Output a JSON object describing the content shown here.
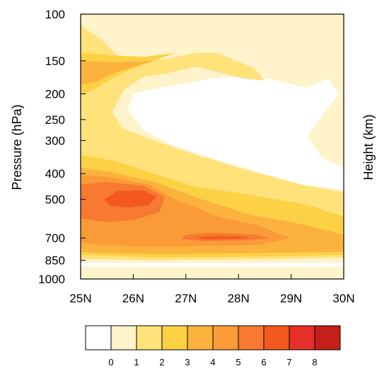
{
  "chart_data": {
    "type": "heatmap",
    "subtype": "filled-contour",
    "ylabel": "Pressure (hPa)",
    "ylabel_right": "Height (km)",
    "x": {
      "range": [
        25,
        30
      ],
      "ticks": [
        25,
        26,
        27,
        28,
        29,
        30
      ],
      "tick_labels": [
        "25N",
        "26N",
        "27N",
        "28N",
        "29N",
        "30N"
      ]
    },
    "y": {
      "scale": "log",
      "inverted": true,
      "range": [
        1000,
        100
      ],
      "ticks": [
        100,
        150,
        200,
        250,
        300,
        400,
        500,
        700,
        850,
        1000
      ],
      "tick_labels": [
        "100",
        "150",
        "200",
        "250",
        "300",
        "400",
        "500",
        "700",
        "850",
        "1000"
      ]
    },
    "colorbar": {
      "labels": [
        "0",
        "1",
        "2",
        "3",
        "4",
        "5",
        "6",
        "7",
        "8"
      ],
      "colors": [
        "#ffffff",
        "#fff3cc",
        "#ffe27a",
        "#fdd145",
        "#fcb33e",
        "#fb9b37",
        "#f87931",
        "#f5581f",
        "#e5302a",
        "#c41f1a"
      ]
    },
    "contours": [
      {
        "level": 0,
        "color": "#fff3cc",
        "points": [
          [
            25,
            1000
          ],
          [
            30,
            1000
          ],
          [
            30,
            100
          ],
          [
            25,
            100
          ]
        ]
      },
      {
        "level": 0.5,
        "color": "#ffffff",
        "points": [
          [
            25,
            1000
          ],
          [
            30,
            1000
          ],
          [
            30,
            870
          ],
          [
            25,
            870
          ]
        ]
      },
      {
        "level": 1,
        "color": "#ffffff",
        "points": [
          [
            26.5,
            190
          ],
          [
            27.5,
            175
          ],
          [
            28.3,
            170
          ],
          [
            29.3,
            190
          ],
          [
            29.7,
            175
          ],
          [
            29.9,
            200
          ],
          [
            29.6,
            240
          ],
          [
            29.3,
            290
          ],
          [
            29.6,
            350
          ],
          [
            30,
            380
          ],
          [
            30,
            460
          ],
          [
            29.2,
            440
          ],
          [
            28.1,
            380
          ],
          [
            27.3,
            340
          ],
          [
            26.7,
            310
          ],
          [
            26.2,
            275
          ],
          [
            25.9,
            230
          ],
          [
            26.0,
            200
          ]
        ]
      },
      {
        "level": 1.1,
        "color": "#fff3cc",
        "points": [
          [
            25,
            1000
          ],
          [
            30,
            1000
          ],
          [
            30,
            900
          ],
          [
            25,
            900
          ]
        ]
      },
      {
        "level": 1.2,
        "color": "#ffe27a",
        "points": [
          [
            25,
            110
          ],
          [
            25.4,
            125
          ],
          [
            25.8,
            150
          ],
          [
            26.6,
            148
          ],
          [
            27.2,
            140
          ],
          [
            27.6,
            140
          ],
          [
            28.3,
            160
          ],
          [
            28.5,
            178
          ],
          [
            28.1,
            175
          ],
          [
            27.2,
            158
          ],
          [
            26.6,
            168
          ],
          [
            26.2,
            172
          ],
          [
            25.8,
            195
          ],
          [
            25.6,
            235
          ],
          [
            25.8,
            270
          ],
          [
            26.4,
            300
          ],
          [
            27.2,
            340
          ],
          [
            28.2,
            390
          ],
          [
            29.2,
            440
          ],
          [
            30,
            470
          ],
          [
            30,
            830
          ],
          [
            28.8,
            840
          ],
          [
            27.5,
            845
          ],
          [
            26.3,
            850
          ],
          [
            25,
            840
          ]
        ]
      },
      {
        "level": 2,
        "color": "#fdd145",
        "points": [
          [
            25,
            140
          ],
          [
            25.6,
            143
          ],
          [
            26.2,
            145
          ],
          [
            26.8,
            140
          ],
          [
            26.0,
            160
          ],
          [
            25.6,
            175
          ],
          [
            25.2,
            195
          ],
          [
            25,
            200
          ]
        ]
      },
      {
        "level": 2.1,
        "color": "#fdd145",
        "points": [
          [
            25,
            340
          ],
          [
            25.7,
            360
          ],
          [
            26.4,
            400
          ],
          [
            27.2,
            450
          ],
          [
            28.2,
            480
          ],
          [
            29.2,
            520
          ],
          [
            30,
            580
          ],
          [
            30,
            810
          ],
          [
            29.0,
            820
          ],
          [
            27.8,
            825
          ],
          [
            26.5,
            830
          ],
          [
            25,
            810
          ]
        ]
      },
      {
        "level": 3,
        "color": "#fcb33e",
        "points": [
          [
            25,
            150
          ],
          [
            25.7,
            152
          ],
          [
            26.4,
            150
          ],
          [
            25.7,
            165
          ],
          [
            25.3,
            180
          ],
          [
            25,
            185
          ]
        ]
      },
      {
        "level": 3.1,
        "color": "#fcb33e",
        "points": [
          [
            25,
            380
          ],
          [
            25.6,
            395
          ],
          [
            26.4,
            430
          ],
          [
            27.3,
            500
          ],
          [
            28.2,
            570
          ],
          [
            29.2,
            620
          ],
          [
            30,
            680
          ],
          [
            30,
            790
          ],
          [
            29.2,
            795
          ],
          [
            28.0,
            800
          ],
          [
            26.6,
            805
          ],
          [
            25.4,
            800
          ],
          [
            25,
            790
          ]
        ]
      },
      {
        "level": 4,
        "color": "#fb9b37",
        "points": [
          [
            25,
            405
          ],
          [
            25.5,
            410
          ],
          [
            26.3,
            440
          ],
          [
            26.8,
            500
          ],
          [
            27.6,
            580
          ],
          [
            28.4,
            630
          ],
          [
            29.0,
            700
          ],
          [
            28.4,
            745
          ],
          [
            27.4,
            750
          ],
          [
            26.4,
            755
          ],
          [
            25.4,
            745
          ],
          [
            25,
            730
          ]
        ]
      },
      {
        "level": 5,
        "color": "#f87931",
        "points": [
          [
            25,
            440
          ],
          [
            25.5,
            430
          ],
          [
            26.2,
            445
          ],
          [
            26.6,
            490
          ],
          [
            26.5,
            560
          ],
          [
            26.0,
            600
          ],
          [
            25.5,
            610
          ],
          [
            25,
            590
          ]
        ]
      },
      {
        "level": 5.1,
        "color": "#f87931",
        "points": [
          [
            27.0,
            680
          ],
          [
            27.5,
            670
          ],
          [
            28.3,
            680
          ],
          [
            28.6,
            700
          ],
          [
            28.1,
            715
          ],
          [
            27.3,
            718
          ],
          [
            26.9,
            705
          ]
        ]
      },
      {
        "level": 6,
        "color": "#f5581f",
        "points": [
          [
            25.45,
            500
          ],
          [
            25.7,
            465
          ],
          [
            26.2,
            462
          ],
          [
            26.45,
            490
          ],
          [
            26.3,
            525
          ],
          [
            25.9,
            538
          ],
          [
            25.55,
            528
          ]
        ]
      },
      {
        "level": 6.1,
        "color": "#f5581f",
        "points": [
          [
            27.2,
            695
          ],
          [
            27.6,
            688
          ],
          [
            28.1,
            692
          ],
          [
            28.2,
            700
          ],
          [
            27.7,
            707
          ],
          [
            27.3,
            706
          ]
        ]
      },
      {
        "level": 2.2,
        "color": "#fdd145",
        "points": [
          [
            29.1,
            540
          ],
          [
            29.4,
            530
          ],
          [
            29.55,
            545
          ],
          [
            29.3,
            555
          ],
          [
            29.05,
            550
          ]
        ]
      }
    ]
  }
}
